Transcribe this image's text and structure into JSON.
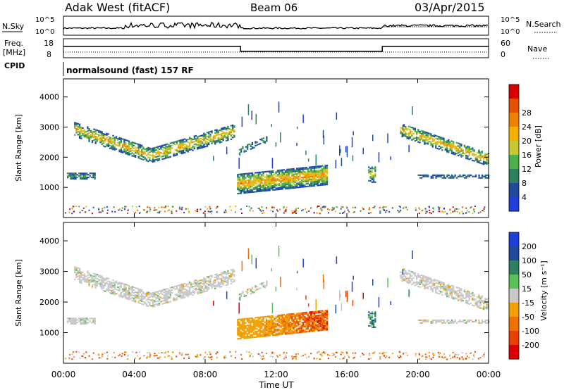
{
  "header": {
    "station": "Adak West (fitACF)",
    "beam": "Beam 06",
    "date": "03/Apr/2015"
  },
  "top_panels": {
    "nsky_label": "N.Sky",
    "nsearch_label": "N.Search",
    "nsky_ticks": [
      "10^5",
      "10^0"
    ],
    "nsearch_ticks": [
      "10^5",
      "10^0"
    ],
    "freq_label_line1": "Freq.",
    "freq_label_line2": "[MHz]",
    "freq_ticks": [
      "18",
      "8"
    ],
    "nave_label": "Nave",
    "nave_ticks": [
      "60",
      "0"
    ],
    "cpid_label": "CPID",
    "cpid_text": "normalsound (fast) 157 RF"
  },
  "chart_data": [
    {
      "type": "heatmap",
      "name": "power",
      "ylabel": "Slant Range [km]",
      "yticks": [
        "1000",
        "2000",
        "3000",
        "4000"
      ],
      "ylim": [
        0,
        4600
      ],
      "xlim": [
        "00:00",
        "24:00"
      ],
      "colorbar": {
        "label": "Power [dB]",
        "ticks": [
          "4",
          "8",
          "12",
          "16",
          "20",
          "24",
          "28"
        ],
        "colors": [
          "#1f3fd8",
          "#214a9c",
          "#2e8060",
          "#4db04a",
          "#c8c832",
          "#f4b000",
          "#f08000",
          "#e55000",
          "#d80000"
        ]
      }
    },
    {
      "type": "heatmap",
      "name": "velocity",
      "ylabel": "Slant Range [km]",
      "yticks": [
        "1000",
        "2000",
        "3000",
        "4000"
      ],
      "ylim": [
        0,
        4600
      ],
      "xlim": [
        "00:00",
        "24:00"
      ],
      "colorbar": {
        "label": "Velocity [m s⁻¹]",
        "ticks": [
          "200",
          "100",
          "50",
          "15",
          "-15",
          "-50",
          "-100",
          "-200"
        ],
        "colors": [
          "#1f3fd8",
          "#214a9c",
          "#2e8060",
          "#5bc05a",
          "#c8c8c8",
          "#f0a000",
          "#f07000",
          "#e84000",
          "#d80000"
        ]
      }
    }
  ],
  "xaxis": {
    "label": "Time UT",
    "ticks": [
      "00:00",
      "04:00",
      "08:00",
      "12:00",
      "16:00",
      "20:00",
      "00:00"
    ]
  }
}
